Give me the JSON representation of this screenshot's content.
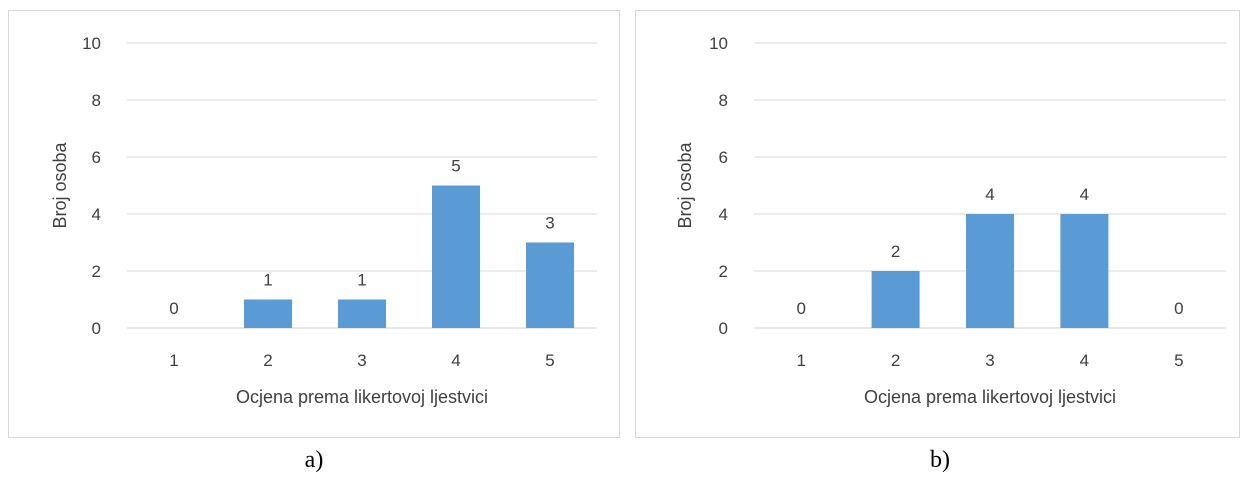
{
  "chart_data": [
    {
      "type": "bar",
      "categories": [
        "1",
        "2",
        "3",
        "4",
        "5"
      ],
      "values": [
        0,
        1,
        1,
        5,
        3
      ],
      "xlabel": "Ocjena prema likertovoj ljestvici",
      "ylabel": "Broj osoba",
      "ylim": [
        0,
        10
      ],
      "yticks": [
        "0",
        "2",
        "4",
        "6",
        "8",
        "10"
      ],
      "grid": true,
      "data_labels": true,
      "bar_color": "#5b9bd5",
      "caption": "a)"
    },
    {
      "type": "bar",
      "categories": [
        "1",
        "2",
        "3",
        "4",
        "5"
      ],
      "values": [
        0,
        2,
        4,
        4,
        0
      ],
      "xlabel": "Ocjena prema likertovoj ljestvici",
      "ylabel": "Broj osoba",
      "ylim": [
        0,
        10
      ],
      "yticks": [
        "0",
        "2",
        "4",
        "6",
        "8",
        "10"
      ],
      "grid": true,
      "data_labels": true,
      "bar_color": "#5b9bd5",
      "caption": "b)"
    }
  ],
  "colors": {
    "bar": "#5b9bd5",
    "grid": "#d9d9d9",
    "text": "#404040",
    "frame_border": "#d9d9d9"
  }
}
